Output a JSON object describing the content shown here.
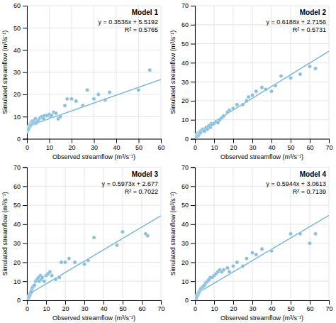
{
  "chart_data": [
    {
      "type": "scatter",
      "title": "Model 1",
      "annotations": [
        "y = 0.3536x + 5.5192",
        "R² = 0.5765"
      ],
      "x_label": "Observed streamflow (m³/s⁻¹)",
      "y_label": "Simulated streamflow (m³/s⁻¹)",
      "color": "#7ab8d9",
      "grid": true,
      "slope": 0.3536,
      "intercept": 5.5192,
      "xlim": [
        0,
        60
      ],
      "ylim": [
        0,
        60
      ],
      "xticks": [
        0,
        10,
        20,
        30,
        40,
        50,
        60
      ],
      "yticks": [
        0,
        10,
        20,
        30,
        40,
        50,
        60
      ],
      "x": [
        0.1,
        0.2,
        0.3,
        0.4,
        0.5,
        0.6,
        0.7,
        0.8,
        0.9,
        1.0,
        1.1,
        1.2,
        1.3,
        1.4,
        1.5,
        1.6,
        1.7,
        1.8,
        1.9,
        2.0,
        2.1,
        2.2,
        2.3,
        2.5,
        2.7,
        3.0,
        3.2,
        3.5,
        3.8,
        4.0,
        4.2,
        4.5,
        5.0,
        5.5,
        6.0,
        6.5,
        7.0,
        7.5,
        8.0,
        9.0,
        10.0,
        10.5,
        11.0,
        12.0,
        13.0,
        14.0,
        15.0,
        17.0,
        18.0,
        20.0,
        22.0,
        25.0,
        27.0,
        30.0,
        32.0,
        35.0,
        37.0,
        50.0,
        55.0
      ],
      "values": [
        3.2,
        3.5,
        3.8,
        4.0,
        4.2,
        5.0,
        4.5,
        5.5,
        5.2,
        5.0,
        6.0,
        6.5,
        5.5,
        6.0,
        5.8,
        6.2,
        7.0,
        7.5,
        7.0,
        6.5,
        7.5,
        8.0,
        7.5,
        7.0,
        8.0,
        7.0,
        7.5,
        8.5,
        9.0,
        7.0,
        8.0,
        7.5,
        8.0,
        9.0,
        9.5,
        10.0,
        10.0,
        9.0,
        10.5,
        10.5,
        11.0,
        10.0,
        10.5,
        12.0,
        11.5,
        9.0,
        10.0,
        15.0,
        18.0,
        18.0,
        17.0,
        15.0,
        22.0,
        18.0,
        20.0,
        17.5,
        21.0,
        22.0,
        31.0
      ]
    },
    {
      "type": "scatter",
      "title": "Model 2",
      "annotations": [
        "y = 0.6188x + 2.7156",
        "R² = 0.5731"
      ],
      "x_label": "Observed streamflow (m³/s⁻¹)",
      "y_label": "Simulated streamflow (m³/s⁻¹)",
      "color": "#7ab8d9",
      "grid": true,
      "slope": 0.6188,
      "intercept": 2.7156,
      "xlim": [
        0,
        70
      ],
      "ylim": [
        0,
        70
      ],
      "xticks": [
        0,
        10,
        20,
        30,
        40,
        50,
        60,
        70
      ],
      "yticks": [
        0,
        10,
        20,
        30,
        40,
        50,
        60,
        70
      ],
      "x": [
        0.2,
        0.4,
        0.6,
        0.8,
        1.0,
        1.2,
        1.4,
        1.6,
        1.8,
        2.0,
        2.2,
        2.4,
        2.6,
        2.8,
        3.0,
        3.5,
        4.0,
        4.5,
        5.0,
        5.5,
        6.0,
        6.5,
        7.0,
        7.5,
        8.0,
        8.5,
        9.0,
        10.0,
        11.0,
        12.0,
        13.0,
        14.0,
        15.0,
        17.0,
        18.0,
        20.0,
        22.0,
        25.0,
        27.0,
        28.0,
        30.0,
        32.0,
        35.0,
        37.0,
        40.0,
        42.0,
        45.0,
        50.0,
        55.0,
        60.0,
        63.0
      ],
      "values": [
        0.5,
        1.0,
        1.5,
        0.8,
        2.0,
        2.5,
        1.5,
        2.0,
        1.8,
        3.0,
        2.5,
        3.5,
        3.0,
        4.0,
        3.5,
        4.5,
        5.0,
        4.5,
        4.0,
        5.5,
        6.0,
        5.0,
        6.5,
        7.0,
        6.0,
        8.0,
        7.5,
        8.0,
        9.0,
        8.5,
        10.0,
        11.0,
        12.0,
        14.0,
        15.0,
        16.0,
        18.0,
        18.0,
        20.0,
        22.0,
        23.0,
        25.0,
        27.0,
        26.0,
        25.0,
        28.0,
        33.0,
        32.0,
        34.0,
        38.0,
        37.0
      ]
    },
    {
      "type": "scatter",
      "title": "Model 3",
      "annotations": [
        "y = 0.5973x + 2.677",
        "R² = 0.7022"
      ],
      "x_label": "Observed streamflow (m³/s⁻¹)",
      "y_label": "Simulated streamflow (m³/s⁻¹)",
      "color": "#7ab8d9",
      "grid": true,
      "slope": 0.5973,
      "intercept": 2.677,
      "xlim": [
        0,
        70
      ],
      "ylim": [
        0,
        70
      ],
      "xticks": [
        0,
        10,
        20,
        30,
        40,
        50,
        60,
        70
      ],
      "yticks": [
        0,
        10,
        20,
        30,
        40,
        50,
        60,
        70
      ],
      "x": [
        0.2,
        0.4,
        0.6,
        0.8,
        1.0,
        1.2,
        1.4,
        1.6,
        1.8,
        2.0,
        2.2,
        2.4,
        2.6,
        2.8,
        3.0,
        3.5,
        4.0,
        4.5,
        5.0,
        5.5,
        6.0,
        6.5,
        7.0,
        7.5,
        8.0,
        9.0,
        10.0,
        11.0,
        12.0,
        13.0,
        15.0,
        17.0,
        18.0,
        20.0,
        22.0,
        25.0,
        30.0,
        32.0,
        35.0,
        47.0,
        50.0,
        62.0,
        63.0
      ],
      "values": [
        0.3,
        0.5,
        1.0,
        1.5,
        2.0,
        1.8,
        2.5,
        3.0,
        3.5,
        4.0,
        5.0,
        4.5,
        6.0,
        6.5,
        7.0,
        7.5,
        8.0,
        10.0,
        10.5,
        11.0,
        12.0,
        10.0,
        13.0,
        11.0,
        12.0,
        10.0,
        13.0,
        14.0,
        15.0,
        13.0,
        11.0,
        12.0,
        20.0,
        20.0,
        22.0,
        20.0,
        19.0,
        21.0,
        33.0,
        29.0,
        36.0,
        35.0,
        34.0
      ]
    },
    {
      "type": "scatter",
      "title": "Model 4",
      "annotations": [
        "y = 0.5944x + 3.0613",
        "R² = 0.7139"
      ],
      "x_label": "Observed streamflow (m³/s⁻¹)",
      "y_label": "Simulated streamflow (m³/s⁻¹)",
      "color": "#7ab8d9",
      "grid": true,
      "slope": 0.5944,
      "intercept": 3.0613,
      "xlim": [
        0,
        70
      ],
      "ylim": [
        0,
        70
      ],
      "xticks": [
        0,
        10,
        20,
        30,
        40,
        50,
        60,
        70
      ],
      "yticks": [
        0,
        10,
        20,
        30,
        40,
        50,
        60,
        70
      ],
      "x": [
        0.2,
        0.4,
        0.6,
        0.8,
        1.0,
        1.2,
        1.5,
        1.8,
        2.0,
        2.2,
        2.5,
        2.8,
        3.0,
        3.5,
        4.0,
        4.5,
        5.0,
        5.5,
        6.0,
        6.5,
        7.0,
        7.5,
        8.0,
        9.0,
        10.0,
        11.0,
        12.0,
        13.0,
        14.0,
        15.0,
        17.0,
        18.0,
        20.0,
        22.0,
        25.0,
        27.0,
        30.0,
        32.0,
        35.0,
        40.0,
        50.0,
        55.0,
        60.0,
        63.0
      ],
      "values": [
        0.2,
        0.5,
        1.0,
        1.5,
        2.0,
        2.5,
        3.0,
        3.5,
        4.0,
        4.5,
        5.0,
        5.5,
        6.0,
        6.5,
        7.0,
        7.5,
        8.0,
        9.0,
        9.5,
        10.0,
        10.5,
        11.0,
        12.0,
        12.0,
        13.0,
        14.0,
        15.0,
        16.0,
        15.0,
        16.0,
        17.0,
        15.0,
        18.0,
        20.0,
        18.0,
        22.0,
        25.0,
        24.0,
        27.0,
        26.0,
        35.0,
        35.0,
        30.0,
        35.0
      ]
    }
  ]
}
